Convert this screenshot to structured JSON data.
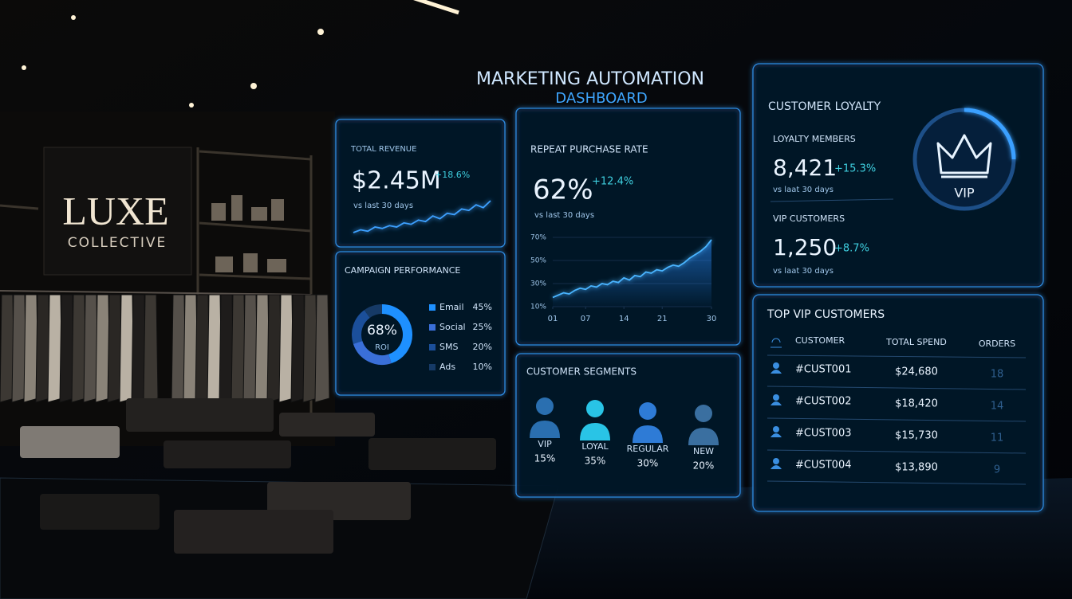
{
  "store": {
    "name": "LUXE",
    "tagline": "COLLECTIVE"
  },
  "dashboard": {
    "title": "MARKETING AUTOMATION",
    "subtitle": "DASHBOARD"
  },
  "total_revenue": {
    "label": "TOTAL REVENUE",
    "value": "$2.45M",
    "change": "+18.6%",
    "note": "vs last 30 days"
  },
  "repeat_purchase": {
    "label": "REPEAT PURCHASE RATE",
    "value": "62%",
    "change": "+12.4%",
    "note": "vs last 30 days"
  },
  "customer_loyalty": {
    "title": "CUSTOMER LOYALTY",
    "badge": "VIP",
    "metrics": [
      {
        "label": "LOYALTY MEMBERS",
        "value": "8,421",
        "change": "+15.3%",
        "note": "vs laat 30 days"
      },
      {
        "label": "VIP CUSTOMERS",
        "value": "1,250",
        "change": "+8.7%",
        "note": "vs laat 30 days"
      }
    ]
  },
  "customer_segments": {
    "title": "CUSTOMER SEGMENTS",
    "segments": [
      {
        "label": "VIP",
        "value": "15%"
      },
      {
        "label": "LOYAL",
        "value": "35%"
      },
      {
        "label": "REGULAR",
        "value": "30%"
      },
      {
        "label": "NEW",
        "value": "20%"
      }
    ]
  },
  "top_vip_customers": {
    "title": "TOP VIP CUSTOMERS",
    "columns": [
      "CUSTOMER",
      "TOTAL SPEND",
      "ORDERS"
    ],
    "rows": [
      [
        "#CUST001",
        "$24,680",
        "18"
      ],
      [
        "#CUST002",
        "$18,420",
        "14"
      ],
      [
        "#CUST003",
        "$15,730",
        "11"
      ],
      [
        "#CUST004",
        "$13,890",
        "9"
      ]
    ]
  },
  "chart_data": [
    {
      "type": "line",
      "color": "#3ea0ff",
      "values": [
        10,
        12,
        11,
        14,
        13,
        15,
        14,
        17,
        16,
        19,
        18,
        22,
        20,
        24,
        23,
        27,
        26,
        30,
        28,
        33
      ]
    },
    {
      "type": "line",
      "color": "#4ab4ff",
      "x": [
        1,
        2,
        3,
        4,
        5,
        6,
        7,
        8,
        9,
        10,
        11,
        12,
        13,
        14,
        15,
        16,
        17,
        18,
        19,
        20,
        21,
        22,
        23,
        24,
        25,
        26,
        27,
        28,
        29,
        30
      ],
      "values": [
        18,
        20,
        22,
        21,
        24,
        26,
        25,
        28,
        27,
        30,
        29,
        32,
        31,
        35,
        33,
        37,
        36,
        40,
        39,
        42,
        41,
        44,
        46,
        45,
        48,
        52,
        55,
        58,
        62,
        68
      ],
      "xlim": [
        1,
        30
      ],
      "ylim": [
        10,
        70
      ],
      "xticks": [
        {
          "value": 1,
          "label": "01"
        },
        {
          "value": 7,
          "label": "07"
        },
        14,
        21,
        30
      ],
      "yticks": [
        {
          "value": 10,
          "label": "10%"
        },
        {
          "value": 30,
          "label": "30%"
        },
        {
          "value": 50,
          "label": "50%"
        },
        {
          "value": 70,
          "label": "70%"
        }
      ]
    },
    {
      "type": "pie",
      "title": "CAMPAIGN PERFORMANCE",
      "donut": true,
      "categories": [
        "Email",
        "Social",
        "SMS",
        "Ads"
      ],
      "values": [
        45,
        25,
        20,
        10
      ],
      "value_labels": [
        "45%",
        "25%",
        "20%",
        "10%"
      ],
      "colors": [
        "#1e90ff",
        "#3a6fd8",
        "#1b4f9a",
        "#163a66"
      ],
      "center_value": "68%",
      "center_label": "ROI"
    }
  ]
}
